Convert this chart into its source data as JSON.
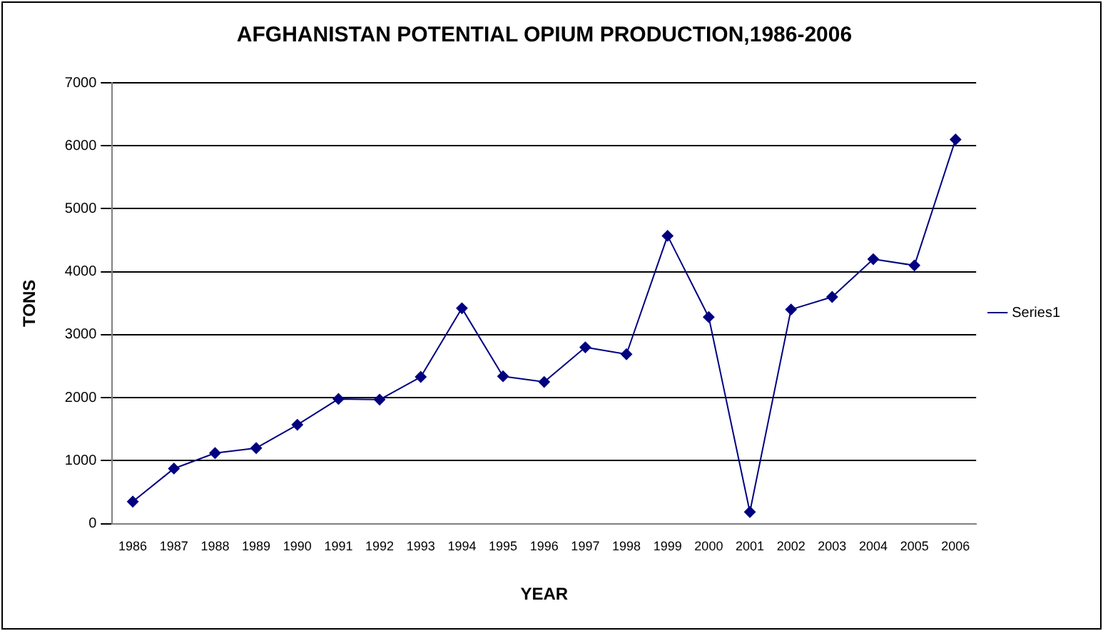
{
  "chart_data": {
    "type": "line",
    "title": "AFGHANISTAN POTENTIAL OPIUM PRODUCTION,1986-2006",
    "xlabel": "YEAR",
    "ylabel": "TONS",
    "categories": [
      "1986",
      "1987",
      "1988",
      "1989",
      "1990",
      "1991",
      "1992",
      "1993",
      "1994",
      "1995",
      "1996",
      "1997",
      "1998",
      "1999",
      "2000",
      "2001",
      "2002",
      "2003",
      "2004",
      "2005",
      "2006"
    ],
    "series": [
      {
        "name": "Series1",
        "color": "#000080",
        "values": [
          350,
          875,
          1120,
          1200,
          1570,
          1980,
          1970,
          2330,
          3420,
          2340,
          2250,
          2800,
          2690,
          4570,
          3280,
          185,
          3400,
          3600,
          4200,
          4100,
          6100
        ]
      }
    ],
    "ylim": [
      0,
      7000
    ],
    "yticks": [
      0,
      1000,
      2000,
      3000,
      4000,
      5000,
      6000,
      7000
    ],
    "grid": "y",
    "legend": "right",
    "marker": "diamond",
    "line_style": "solid"
  }
}
